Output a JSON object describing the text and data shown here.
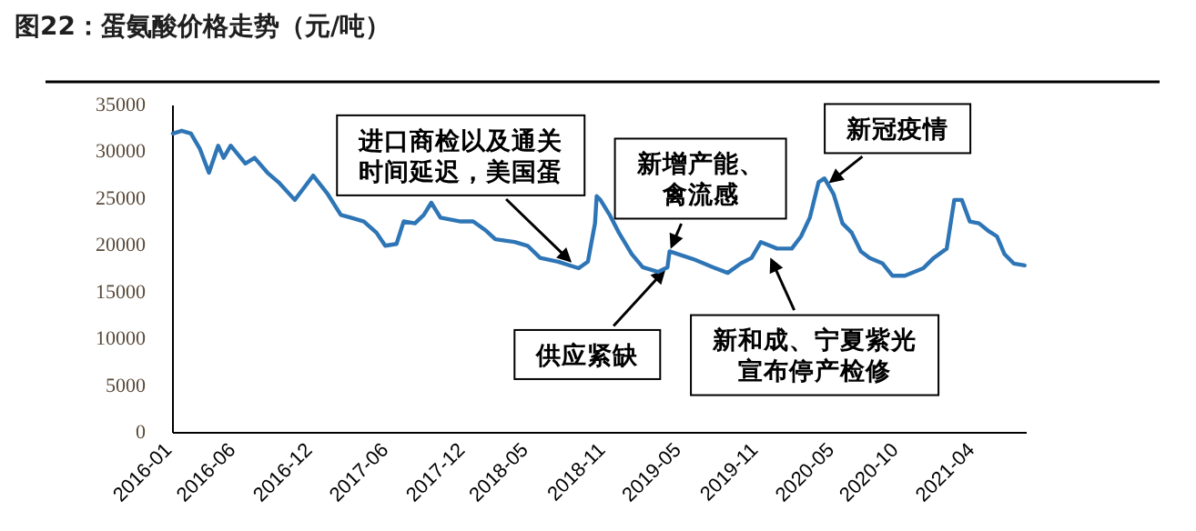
{
  "chart_data": {
    "type": "line",
    "title": "图22：蛋氨酸价格走势（元/吨）",
    "x": [
      "2016-01-01",
      "2016-01-22",
      "2016-02-13",
      "2016-03-05",
      "2016-03-27",
      "2016-04-18",
      "2016-05-01",
      "2016-05-18",
      "2016-06-22",
      "2016-07-14",
      "2016-08-14",
      "2016-09-09",
      "2016-10-18",
      "2016-11-09",
      "2016-12-01",
      "2017-01-05",
      "2017-02-05",
      "2017-03-01",
      "2017-04-01",
      "2017-05-01",
      "2017-05-22",
      "2017-06-18",
      "2017-07-05",
      "2017-08-01",
      "2017-08-22",
      "2017-09-09",
      "2017-10-01",
      "2017-11-18",
      "2017-12-18",
      "2018-01-18",
      "2018-02-09",
      "2018-03-27",
      "2018-04-27",
      "2018-05-27",
      "2018-07-09",
      "2018-08-27",
      "2018-09-18",
      "2018-10-05",
      "2018-10-09",
      "2018-10-18",
      "2018-11-09",
      "2018-12-01",
      "2019-01-01",
      "2019-01-27",
      "2019-03-05",
      "2019-03-27",
      "2019-04-01",
      "2019-04-22",
      "2019-06-01",
      "2019-07-14",
      "2019-08-18",
      "2019-09-18",
      "2019-10-14",
      "2019-11-05",
      "2019-12-14",
      "2020-01-18",
      "2020-02-09",
      "2020-03-01",
      "2020-03-22",
      "2020-04-05",
      "2020-04-27",
      "2020-05-18",
      "2020-06-09",
      "2020-07-01",
      "2020-07-22",
      "2020-08-22",
      "2020-09-14",
      "2020-10-14",
      "2020-11-27",
      "2020-12-22",
      "2021-01-22",
      "2021-02-09",
      "2021-02-27",
      "2021-03-18",
      "2021-04-09",
      "2021-05-01",
      "2021-05-22",
      "2021-06-09",
      "2021-07-01",
      "2021-07-27"
    ],
    "series": [
      {
        "color": "#2e75b6",
        "values": [
          32000,
          32300,
          32000,
          30400,
          27800,
          30700,
          29400,
          30700,
          28800,
          29400,
          27800,
          26800,
          24900,
          26200,
          27500,
          25500,
          23300,
          23000,
          22600,
          21400,
          20000,
          20200,
          22600,
          22400,
          23300,
          24600,
          23000,
          22600,
          22600,
          21600,
          20700,
          20400,
          20000,
          18700,
          18300,
          17600,
          18300,
          22400,
          25300,
          24900,
          23300,
          21400,
          19100,
          17700,
          17200,
          17700,
          19400,
          19100,
          18500,
          17700,
          17100,
          18100,
          18700,
          20400,
          19700,
          19700,
          21000,
          23000,
          26800,
          27200,
          25500,
          22400,
          21400,
          19400,
          18700,
          18100,
          16800,
          16800,
          17600,
          18700,
          19700,
          24900,
          24900,
          22600,
          22400,
          21600,
          21000,
          19100,
          18100,
          17900
        ]
      }
    ],
    "xlim": [
      "2016-01-01",
      "2021-08-01"
    ],
    "xticks": [
      "2016-01",
      "2016-06",
      "2016-12",
      "2017-06",
      "2017-12",
      "2018-05",
      "2018-11",
      "2019-05",
      "2019-11",
      "2020-05",
      "2020-10",
      "2021-04"
    ],
    "ylim": [
      0,
      35000
    ],
    "yticks": [
      0,
      5000,
      10000,
      15000,
      20000,
      25000,
      30000,
      35000
    ],
    "grid": false,
    "annotations": [
      {
        "text": "进口商检以及通关时间延迟，美国蛋",
        "x": "2018-08-15",
        "y": 18000
      },
      {
        "text": "新增产能、禽流感",
        "x": "2019-04-01",
        "y": 19400
      },
      {
        "text": "新冠疫情",
        "x": "2020-04-10",
        "y": 26500
      },
      {
        "text": "供应紧缺",
        "x": "2019-03-27",
        "y": 17700
      },
      {
        "text": "新和成、宁夏紫光宣布停产检修",
        "x": "2019-11-25",
        "y": 19000
      }
    ]
  }
}
